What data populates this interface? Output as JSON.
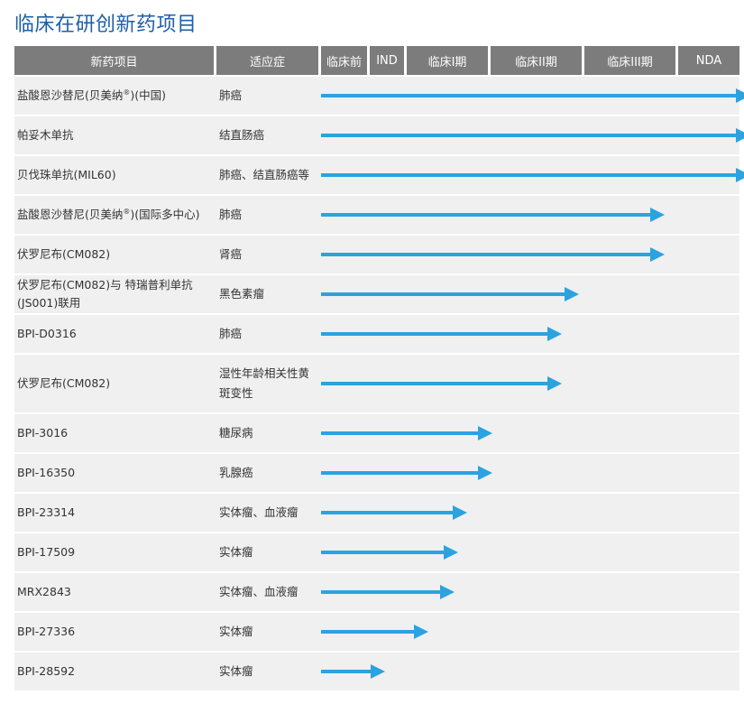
{
  "page": {
    "title": "临床在研创新药项目"
  },
  "table": {
    "headers": {
      "drug": "新药项目",
      "indication": "适应症",
      "stages": [
        "临床前",
        "IND",
        "临床I期",
        "临床II期",
        "临床III期",
        "NDA"
      ]
    },
    "rows": [
      {
        "name": "盐酸恩沙替尼(贝美纳",
        "reg": "®",
        "name_suffix": ")(中国)",
        "indication": "肺癌",
        "stage_fraction": 1.0
      },
      {
        "name": "帕妥木单抗",
        "indication": "结直肠癌",
        "stage_fraction": 1.0
      },
      {
        "name": "贝伐珠单抗(MIL60)",
        "indication": "肺癌、结直肠癌等",
        "stage_fraction": 1.0
      },
      {
        "name": "盐酸恩沙替尼(贝美纳",
        "reg": "®",
        "name_suffix": ")(国际多中心)",
        "indication": "肺癌",
        "stage_fraction": 0.8
      },
      {
        "name": "伏罗尼布(CM082)",
        "indication": "肾癌",
        "stage_fraction": 0.8
      },
      {
        "name": "伏罗尼布(CM082)与 特瑞普利单抗",
        "name_line2": "(JS001)联用",
        "indication": "黑色素瘤",
        "stage_fraction": 0.6
      },
      {
        "name": "BPI-D0316",
        "indication": "肺癌",
        "stage_fraction": 0.56
      },
      {
        "name": "伏罗尼布(CM082)",
        "indication": "湿性年龄相关性黄",
        "indication_line2": "斑变性",
        "stage_fraction": 0.56
      },
      {
        "name": "BPI-3016",
        "indication": "糖尿病",
        "stage_fraction": 0.4
      },
      {
        "name": "BPI-16350",
        "indication": "乳腺癌",
        "stage_fraction": 0.4
      },
      {
        "name": "BPI-23314",
        "indication": "实体瘤、血液瘤",
        "stage_fraction": 0.34
      },
      {
        "name": "BPI-17509",
        "indication": "实体瘤",
        "stage_fraction": 0.32
      },
      {
        "name": "MRX2843",
        "indication": "实体瘤、血液瘤",
        "stage_fraction": 0.31
      },
      {
        "name": "BPI-27336",
        "indication": "实体瘤",
        "stage_fraction": 0.25
      },
      {
        "name": "BPI-28592",
        "indication": "实体瘤",
        "stage_fraction": 0.15
      }
    ]
  },
  "colors": {
    "title": "#1f5fa8",
    "header_bg": "#7c7c7c",
    "row_bg": "#f0f0f0",
    "arrow": "#2aa3e0"
  },
  "icons": {
    "progress": "arrow-right-icon"
  }
}
